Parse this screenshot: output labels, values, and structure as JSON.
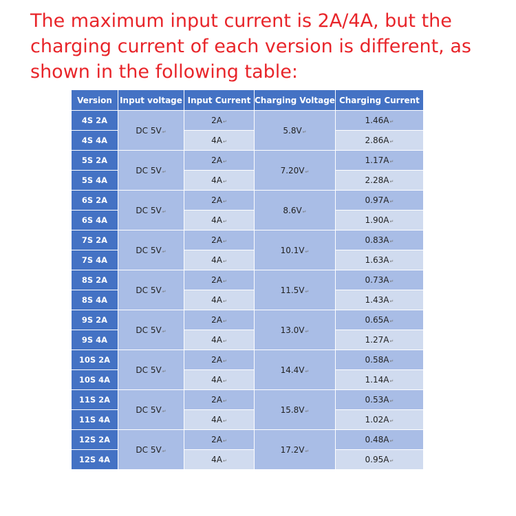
{
  "intro_text": "The maximum input current is 2A/4A, but the charging current of each version is different, as shown in the following table:",
  "colors": {
    "text_red": "#e8252a",
    "header_blue": "#4472c4",
    "cell_shade": "#a9bde6",
    "cell_light": "#d0dbef"
  },
  "table": {
    "headers": [
      "Version",
      "Input voltage",
      "Input Current",
      "Charging Voltage",
      "Charging Current"
    ],
    "groups": [
      {
        "input_voltage": "DC 5V",
        "charging_voltage": "5.8V",
        "rows": [
          {
            "version": "4S 2A",
            "input_current": "2A",
            "charging_current": "1.46A"
          },
          {
            "version": "4S 4A",
            "input_current": "4A",
            "charging_current": "2.86A"
          }
        ]
      },
      {
        "input_voltage": "DC 5V",
        "charging_voltage": "7.20V",
        "rows": [
          {
            "version": "5S 2A",
            "input_current": "2A",
            "charging_current": "1.17A"
          },
          {
            "version": "5S 4A",
            "input_current": "4A",
            "charging_current": "2.28A"
          }
        ]
      },
      {
        "input_voltage": "DC 5V",
        "charging_voltage": "8.6V",
        "rows": [
          {
            "version": "6S 2A",
            "input_current": "2A",
            "charging_current": "0.97A"
          },
          {
            "version": "6S 4A",
            "input_current": "4A",
            "charging_current": "1.90A"
          }
        ]
      },
      {
        "input_voltage": "DC 5V",
        "charging_voltage": "10.1V",
        "rows": [
          {
            "version": "7S 2A",
            "input_current": "2A",
            "charging_current": "0.83A"
          },
          {
            "version": "7S 4A",
            "input_current": "4A",
            "charging_current": "1.63A"
          }
        ]
      },
      {
        "input_voltage": "DC 5V",
        "charging_voltage": "11.5V",
        "rows": [
          {
            "version": "8S 2A",
            "input_current": "2A",
            "charging_current": "0.73A"
          },
          {
            "version": "8S 4A",
            "input_current": "4A",
            "charging_current": "1.43A"
          }
        ]
      },
      {
        "input_voltage": "DC 5V",
        "charging_voltage": "13.0V",
        "rows": [
          {
            "version": "9S 2A",
            "input_current": "2A",
            "charging_current": "0.65A"
          },
          {
            "version": "9S 4A",
            "input_current": "4A",
            "charging_current": "1.27A"
          }
        ]
      },
      {
        "input_voltage": "DC 5V",
        "charging_voltage": "14.4V",
        "rows": [
          {
            "version": "10S 2A",
            "input_current": "2A",
            "charging_current": "0.58A"
          },
          {
            "version": "10S 4A",
            "input_current": "4A",
            "charging_current": "1.14A"
          }
        ]
      },
      {
        "input_voltage": "DC 5V",
        "charging_voltage": "15.8V",
        "rows": [
          {
            "version": "11S 2A",
            "input_current": "2A",
            "charging_current": "0.53A"
          },
          {
            "version": "11S 4A",
            "input_current": "4A",
            "charging_current": "1.02A"
          }
        ]
      },
      {
        "input_voltage": "DC 5V",
        "charging_voltage": "17.2V",
        "rows": [
          {
            "version": "12S 2A",
            "input_current": "2A",
            "charging_current": "0.48A"
          },
          {
            "version": "12S 4A",
            "input_current": "4A",
            "charging_current": "0.95A"
          }
        ]
      }
    ]
  }
}
